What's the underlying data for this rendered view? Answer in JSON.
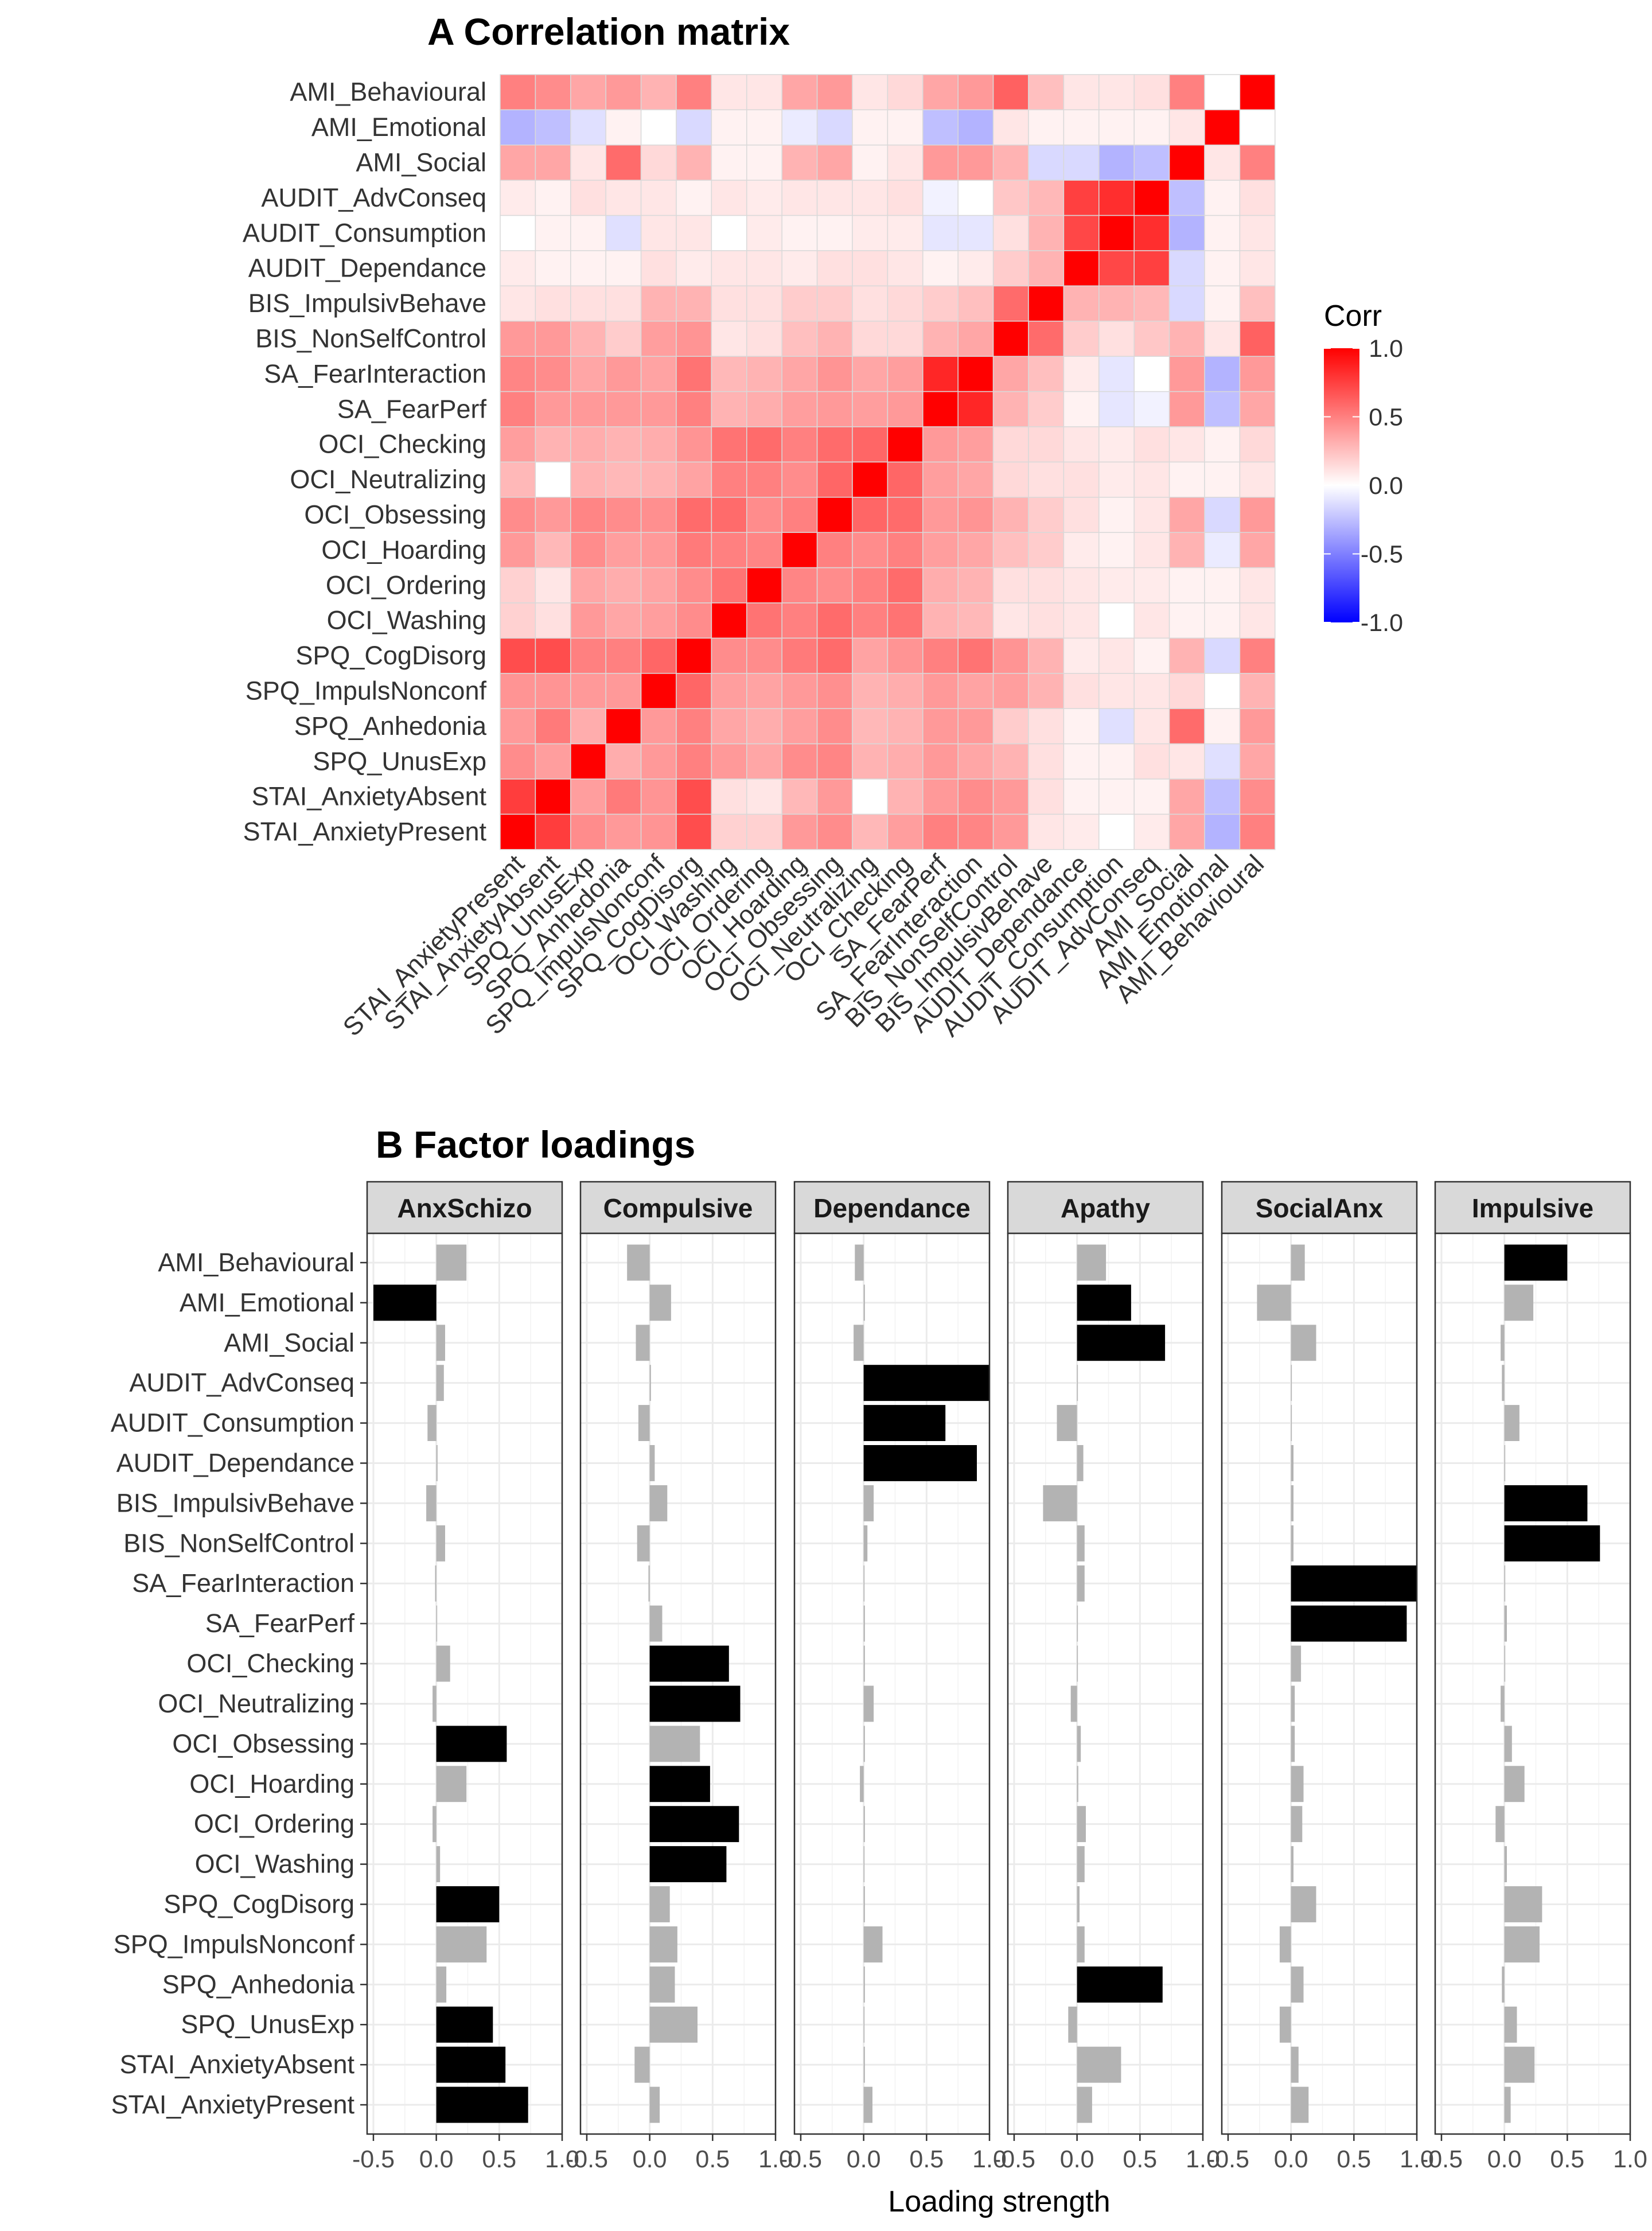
{
  "chart_data": [
    {
      "type": "heatmap",
      "title": "A Correlation matrix",
      "legend": {
        "title": "Corr",
        "ticks": [
          "1.0",
          "0.5",
          "0.0",
          "-0.5",
          "-1.0"
        ],
        "placement": "right",
        "low_color": "#0000FF",
        "mid_color": "#FFFFFF",
        "high_color": "#FF0000"
      },
      "variables": [
        "STAI_AnxietyPresent",
        "STAI_AnxietyAbsent",
        "SPQ_UnusExp",
        "SPQ_Anhedonia",
        "SPQ_ImpulsNonconf",
        "SPQ_CogDisorg",
        "OCI_Washing",
        "OCI_Ordering",
        "OCI_Hoarding",
        "OCI_Obsessing",
        "OCI_Neutralizing",
        "OCI_Checking",
        "SA_FearPerf",
        "SA_FearInteraction",
        "BIS_NonSelfControl",
        "BIS_ImpulsivBehave",
        "AUDIT_Dependance",
        "AUDIT_Consumption",
        "AUDIT_AdvConseq",
        "AMI_Social",
        "AMI_Emotional",
        "AMI_Behavioural"
      ],
      "rows_top_to_bottom": [
        "AMI_Behavioural",
        "AMI_Emotional",
        "AMI_Social",
        "AUDIT_AdvConseq",
        "AUDIT_Consumption",
        "AUDIT_Dependance",
        "BIS_ImpulsivBehave",
        "BIS_NonSelfControl",
        "SA_FearInteraction",
        "SA_FearPerf",
        "OCI_Checking",
        "OCI_Neutralizing",
        "OCI_Obsessing",
        "OCI_Hoarding",
        "OCI_Ordering",
        "OCI_Washing",
        "SPQ_CogDisorg",
        "SPQ_ImpulsNonconf",
        "SPQ_Anhedonia",
        "SPQ_UnusExp",
        "STAI_AnxietyAbsent",
        "STAI_AnxietyPresent"
      ],
      "matrix": [
        [
          1,
          0.76,
          0.45,
          0.4,
          0.42,
          0.7,
          0.18,
          0.18,
          0.4,
          0.45,
          0.28,
          0.38,
          0.5,
          0.48,
          0.4,
          0.1,
          0.08,
          0,
          0.08,
          0.35,
          -0.3,
          0.5
        ],
        [
          0.76,
          1,
          0.38,
          0.52,
          0.42,
          0.7,
          0.12,
          0.1,
          0.28,
          0.4,
          0,
          0.3,
          0.4,
          0.45,
          0.4,
          0.12,
          0.05,
          0.05,
          0.05,
          0.35,
          -0.25,
          0.45
        ],
        [
          0.45,
          0.38,
          1,
          0.32,
          0.4,
          0.5,
          0.4,
          0.35,
          0.45,
          0.48,
          0.3,
          0.32,
          0.4,
          0.35,
          0.3,
          0.12,
          0.05,
          0.05,
          0.12,
          0.1,
          -0.12,
          0.35
        ],
        [
          0.4,
          0.52,
          0.32,
          1,
          0.4,
          0.5,
          0.35,
          0.32,
          0.38,
          0.45,
          0.28,
          0.3,
          0.4,
          0.4,
          0.2,
          0.12,
          0.05,
          -0.12,
          0.1,
          0.58,
          0.05,
          0.4
        ],
        [
          0.42,
          0.42,
          0.4,
          0.4,
          1,
          0.6,
          0.38,
          0.36,
          0.4,
          0.44,
          0.3,
          0.32,
          0.4,
          0.36,
          0.38,
          0.3,
          0.12,
          0.1,
          0.1,
          0.15,
          0,
          0.3
        ],
        [
          0.7,
          0.7,
          0.5,
          0.5,
          0.6,
          1,
          0.45,
          0.45,
          0.52,
          0.58,
          0.36,
          0.42,
          0.5,
          0.55,
          0.42,
          0.3,
          0.08,
          0.1,
          0.05,
          0.3,
          -0.15,
          0.5
        ],
        [
          0.18,
          0.12,
          0.4,
          0.35,
          0.38,
          0.45,
          1,
          0.55,
          0.5,
          0.58,
          0.5,
          0.55,
          0.3,
          0.28,
          0.1,
          0.12,
          0.1,
          0,
          0.1,
          0.05,
          0.05,
          0.1
        ],
        [
          0.18,
          0.1,
          0.35,
          0.32,
          0.36,
          0.45,
          0.55,
          1,
          0.48,
          0.45,
          0.5,
          0.58,
          0.32,
          0.3,
          0.12,
          0.12,
          0.1,
          0.08,
          0.08,
          0.05,
          0.05,
          0.1
        ],
        [
          0.4,
          0.28,
          0.45,
          0.38,
          0.4,
          0.52,
          0.5,
          0.48,
          1,
          0.5,
          0.45,
          0.5,
          0.38,
          0.35,
          0.25,
          0.2,
          0.08,
          0.05,
          0.1,
          0.3,
          -0.08,
          0.35
        ],
        [
          0.45,
          0.4,
          0.48,
          0.45,
          0.44,
          0.58,
          0.58,
          0.45,
          0.5,
          1,
          0.6,
          0.58,
          0.4,
          0.42,
          0.3,
          0.2,
          0.12,
          0.05,
          0.1,
          0.35,
          -0.15,
          0.4
        ],
        [
          0.28,
          0,
          0.3,
          0.28,
          0.3,
          0.36,
          0.5,
          0.5,
          0.45,
          0.6,
          1,
          0.6,
          0.38,
          0.35,
          0.15,
          0.12,
          0.12,
          0.08,
          0.1,
          0.05,
          0.05,
          0.1
        ],
        [
          0.38,
          0.3,
          0.32,
          0.3,
          0.32,
          0.42,
          0.55,
          0.58,
          0.5,
          0.58,
          0.6,
          1,
          0.4,
          0.38,
          0.15,
          0.15,
          0.1,
          0.08,
          0.12,
          0.1,
          0.05,
          0.15
        ],
        [
          0.5,
          0.4,
          0.4,
          0.4,
          0.4,
          0.5,
          0.3,
          0.32,
          0.38,
          0.4,
          0.38,
          0.4,
          1,
          0.85,
          0.3,
          0.2,
          0.05,
          -0.1,
          -0.05,
          0.4,
          -0.25,
          0.35
        ],
        [
          0.48,
          0.45,
          0.35,
          0.4,
          0.36,
          0.55,
          0.28,
          0.3,
          0.35,
          0.42,
          0.35,
          0.38,
          0.85,
          1,
          0.35,
          0.25,
          0.08,
          -0.1,
          0,
          0.4,
          -0.3,
          0.4
        ],
        [
          0.4,
          0.4,
          0.3,
          0.2,
          0.38,
          0.42,
          0.1,
          0.12,
          0.25,
          0.3,
          0.15,
          0.15,
          0.3,
          0.35,
          1,
          0.58,
          0.2,
          0.12,
          0.22,
          0.3,
          0.1,
          0.62
        ],
        [
          0.1,
          0.12,
          0.12,
          0.12,
          0.3,
          0.3,
          0.12,
          0.12,
          0.2,
          0.2,
          0.12,
          0.15,
          0.2,
          0.25,
          0.58,
          1,
          0.3,
          0.3,
          0.28,
          -0.15,
          0.05,
          0.25
        ],
        [
          0.08,
          0.05,
          0.05,
          0.05,
          0.12,
          0.08,
          0.1,
          0.1,
          0.08,
          0.12,
          0.12,
          0.1,
          0.05,
          0.08,
          0.2,
          0.3,
          1,
          0.72,
          0.75,
          -0.15,
          0.05,
          0.1
        ],
        [
          0,
          0.05,
          0.05,
          -0.12,
          0.1,
          0.1,
          0,
          0.08,
          0.05,
          0.05,
          0.08,
          0.08,
          -0.1,
          -0.1,
          0.12,
          0.3,
          0.72,
          1,
          0.82,
          -0.3,
          0.05,
          0.1
        ],
        [
          0.08,
          0.05,
          0.12,
          0.1,
          0.1,
          0.05,
          0.1,
          0.08,
          0.1,
          0.1,
          0.1,
          0.12,
          -0.05,
          0,
          0.22,
          0.28,
          0.75,
          0.82,
          1,
          -0.25,
          0.05,
          0.12
        ],
        [
          0.35,
          0.35,
          0.1,
          0.58,
          0.15,
          0.3,
          0.05,
          0.05,
          0.3,
          0.35,
          0.05,
          0.1,
          0.4,
          0.4,
          0.3,
          -0.15,
          -0.15,
          -0.3,
          -0.25,
          1,
          0.1,
          0.5
        ],
        [
          -0.3,
          -0.25,
          -0.12,
          0.05,
          0,
          -0.15,
          0.05,
          0.05,
          -0.08,
          -0.15,
          0.05,
          0.05,
          -0.25,
          -0.3,
          0.1,
          0.05,
          0.05,
          0.05,
          0.05,
          0.1,
          1,
          0
        ],
        [
          0.5,
          0.45,
          0.35,
          0.4,
          0.3,
          0.5,
          0.1,
          0.1,
          0.35,
          0.4,
          0.1,
          0.15,
          0.35,
          0.4,
          0.62,
          0.25,
          0.1,
          0.1,
          0.12,
          0.5,
          0,
          1
        ]
      ]
    },
    {
      "type": "bar",
      "orientation": "horizontal",
      "title": "B Factor loadings",
      "xlabel": "Loading strength",
      "xlim": [
        -0.55,
        1.0
      ],
      "xticks": [
        "-0.5",
        "0.0",
        "0.5",
        "1.0"
      ],
      "highlight_color": "#000000",
      "other_color": "#B3B3B3",
      "grid": true,
      "categories_top_to_bottom": [
        "AMI_Behavioural",
        "AMI_Emotional",
        "AMI_Social",
        "AUDIT_AdvConseq",
        "AUDIT_Consumption",
        "AUDIT_Dependance",
        "BIS_ImpulsivBehave",
        "BIS_NonSelfControl",
        "SA_FearInteraction",
        "SA_FearPerf",
        "OCI_Checking",
        "OCI_Neutralizing",
        "OCI_Obsessing",
        "OCI_Hoarding",
        "OCI_Ordering",
        "OCI_Washing",
        "SPQ_CogDisorg",
        "SPQ_ImpulsNonconf",
        "SPQ_Anhedonia",
        "SPQ_UnusExp",
        "STAI_AnxietyAbsent",
        "STAI_AnxietyPresent"
      ],
      "panels": [
        {
          "name": "AnxSchizo",
          "values": [
            0.24,
            -0.5,
            0.07,
            0.06,
            -0.07,
            0.01,
            -0.08,
            0.07,
            -0.01,
            0.0,
            0.11,
            -0.03,
            0.56,
            0.24,
            -0.03,
            0.03,
            0.5,
            0.4,
            0.08,
            0.45,
            0.55,
            0.73
          ],
          "highlight": [
            false,
            true,
            false,
            false,
            false,
            false,
            false,
            false,
            false,
            false,
            false,
            false,
            true,
            false,
            false,
            false,
            true,
            false,
            false,
            true,
            true,
            true
          ]
        },
        {
          "name": "Compulsive",
          "values": [
            -0.18,
            0.17,
            -0.11,
            0.01,
            -0.09,
            0.04,
            0.14,
            -0.1,
            -0.01,
            0.1,
            0.63,
            0.72,
            0.4,
            0.48,
            0.71,
            0.61,
            0.16,
            0.22,
            0.2,
            0.38,
            -0.12,
            0.08
          ],
          "highlight": [
            false,
            false,
            false,
            false,
            false,
            false,
            false,
            false,
            false,
            false,
            true,
            true,
            false,
            true,
            true,
            true,
            false,
            false,
            false,
            false,
            false,
            false
          ]
        },
        {
          "name": "Dependance",
          "values": [
            -0.07,
            0.01,
            -0.08,
            1.0,
            0.65,
            0.9,
            0.08,
            0.03,
            0.0,
            0.01,
            0.01,
            0.08,
            0.01,
            -0.03,
            0.01,
            0.0,
            0.01,
            0.15,
            0.01,
            0.0,
            0.01,
            0.07
          ],
          "highlight": [
            false,
            false,
            false,
            true,
            true,
            true,
            false,
            false,
            false,
            false,
            false,
            false,
            false,
            false,
            false,
            false,
            false,
            false,
            false,
            false,
            false,
            false
          ]
        },
        {
          "name": "Apathy",
          "values": [
            0.23,
            0.43,
            0.7,
            0.0,
            -0.16,
            0.05,
            -0.27,
            0.06,
            0.06,
            0.0,
            0.0,
            -0.05,
            0.03,
            0.01,
            0.07,
            0.06,
            0.02,
            0.06,
            0.68,
            -0.07,
            0.35,
            0.12
          ],
          "highlight": [
            false,
            true,
            true,
            false,
            false,
            false,
            false,
            false,
            false,
            false,
            false,
            false,
            false,
            false,
            false,
            false,
            false,
            false,
            true,
            false,
            false,
            false
          ]
        },
        {
          "name": "SocialAnx",
          "values": [
            0.11,
            -0.27,
            0.2,
            0.0,
            0.0,
            0.02,
            0.02,
            0.02,
            1.0,
            0.92,
            0.08,
            0.03,
            0.03,
            0.1,
            0.09,
            0.02,
            0.2,
            -0.09,
            0.1,
            -0.09,
            0.06,
            0.14
          ],
          "highlight": [
            false,
            false,
            false,
            false,
            false,
            false,
            false,
            false,
            true,
            true,
            false,
            false,
            false,
            false,
            false,
            false,
            false,
            false,
            false,
            false,
            false,
            false
          ]
        },
        {
          "name": "Impulsive",
          "values": [
            0.5,
            0.23,
            -0.03,
            -0.02,
            0.12,
            0.0,
            0.66,
            0.76,
            0.0,
            0.02,
            0.0,
            -0.03,
            0.06,
            0.16,
            -0.07,
            0.02,
            0.3,
            0.28,
            -0.02,
            0.1,
            0.24,
            0.05
          ],
          "highlight": [
            true,
            false,
            false,
            false,
            false,
            false,
            true,
            true,
            false,
            false,
            false,
            false,
            false,
            false,
            false,
            false,
            false,
            false,
            false,
            false,
            false,
            false
          ]
        }
      ]
    }
  ]
}
